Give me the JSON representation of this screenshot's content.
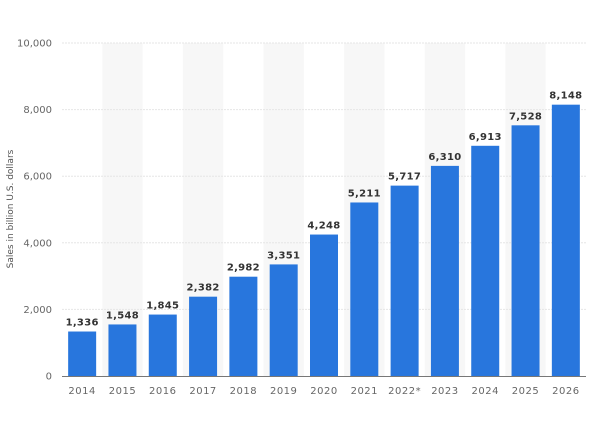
{
  "chart_data": {
    "type": "bar",
    "categories": [
      "2014",
      "2015",
      "2016",
      "2017",
      "2018",
      "2019",
      "2020",
      "2021",
      "2022*",
      "2023",
      "2024",
      "2025",
      "2026"
    ],
    "values": [
      1336,
      1548,
      1845,
      2382,
      2982,
      3351,
      4248,
      5211,
      5717,
      6310,
      6913,
      7528,
      8148
    ],
    "value_labels": [
      "1,336",
      "1,548",
      "1,845",
      "2,382",
      "2,982",
      "3,351",
      "4,248",
      "5,211",
      "5,717",
      "6,310",
      "6,913",
      "7,528",
      "8,148"
    ],
    "title": "",
    "xlabel": "",
    "ylabel": "Sales in billion U.S. dollars",
    "ylim": [
      0,
      10000
    ],
    "yticks": [
      0,
      2000,
      4000,
      6000,
      8000,
      10000
    ],
    "ytick_labels": [
      "0",
      "2,000",
      "4,000",
      "6,000",
      "8,000",
      "10,000"
    ],
    "grid": true,
    "alternating_column_bands": true,
    "colors": {
      "bar": "#2876dd",
      "band": "#f7f7f7",
      "grid": "#e6e6e6",
      "axis": "#777777"
    }
  }
}
